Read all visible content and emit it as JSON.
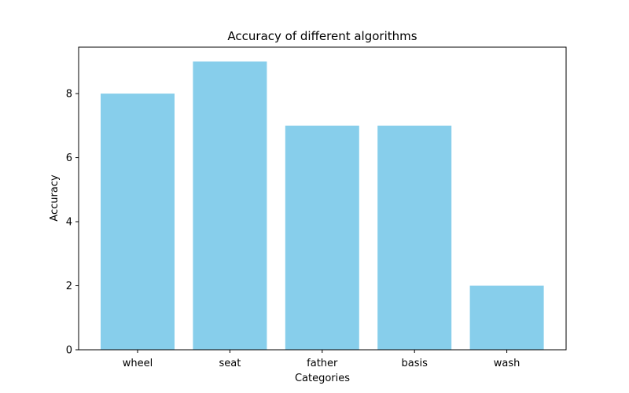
{
  "chart_data": {
    "type": "bar",
    "title": "Accuracy of different algorithms",
    "xlabel": "Categories",
    "ylabel": "Accuracy",
    "categories": [
      "wheel",
      "seat",
      "father",
      "basis",
      "wash"
    ],
    "values": [
      8,
      9,
      7,
      7,
      2
    ],
    "ylim": [
      0,
      9.45
    ],
    "yticks": [
      0,
      2,
      4,
      6,
      8
    ],
    "bar_color": "#87ceeb",
    "grid": false,
    "legend": "none"
  }
}
